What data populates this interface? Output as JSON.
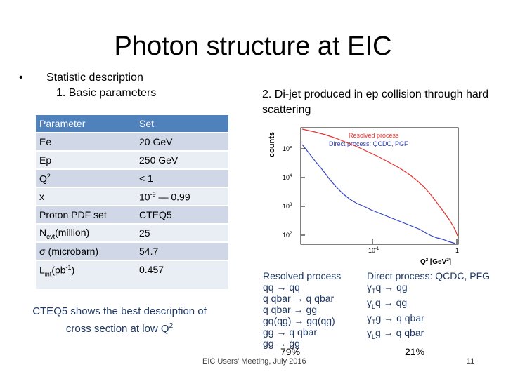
{
  "title": "Photon structure at EIC",
  "bullet": "•",
  "section_heading": "Statistic description",
  "subsection": "1.   Basic parameters",
  "jet_heading": "2. Di-jet produced in ep collision through hard scattering",
  "table": {
    "header": [
      "Parameter",
      "Set"
    ],
    "rows": [
      {
        "name": "Ee",
        "value": "20 GeV"
      },
      {
        "name": "Ep",
        "value": "250 GeV"
      },
      {
        "name_main": "Q",
        "name_sup": "2",
        "value": "< 1"
      },
      {
        "name": "x",
        "value_base": "10",
        "value_sup": "-9",
        "value_rest": " — 0.99"
      },
      {
        "name": "Proton PDF set",
        "value": "CTEQ5"
      },
      {
        "name_main": "N",
        "name_sub": "evt",
        "name_rest": "(million)",
        "value": "25"
      },
      {
        "name": "σ (microbarn)",
        "value": "54.7"
      },
      {
        "name_main": "L",
        "name_sub": "int",
        "name_rest": "(pb",
        "name_sup": "-1",
        "name_end": ")",
        "value": "0.457"
      }
    ]
  },
  "cteq_note": {
    "text": "CTEQ5 shows the best description of cross section at low Q",
    "sup": "2"
  },
  "plot": {
    "ylabel": "counts",
    "xlabel_main": "Q",
    "xlabel_sup": "2",
    "xlabel_unit": " [GeV",
    "xlabel_unit_sup": "2",
    "xlabel_end": "]",
    "legend": [
      {
        "label": "Resolved process",
        "color": "#e8302e"
      },
      {
        "label": "Direct process: QCDC, PGF",
        "color": "#3345c0"
      }
    ],
    "y_ticks": [
      {
        "base": "10",
        "exp": "2"
      },
      {
        "base": "10",
        "exp": "3"
      },
      {
        "base": "10",
        "exp": "4"
      },
      {
        "base": "10",
        "exp": "5"
      }
    ],
    "x_ticks": [
      {
        "label": "10",
        "exp": "-1"
      },
      {
        "label": "1",
        "exp": ""
      }
    ]
  },
  "resolved": {
    "title": "Resolved process",
    "lines": [
      "qq → qq",
      "q qbar → q qbar",
      "q qbar → gg",
      "gq(qg) → gq(qg)",
      "gg → q qbar",
      "gg → gg"
    ],
    "percent": "79%"
  },
  "direct": {
    "title": "Direct process: QCDC, PFG",
    "lines": [
      {
        "a": "γ",
        "sub": "T",
        "b": "q → qg"
      },
      {
        "a": "γ",
        "sub": "L",
        "b": "q → qg"
      },
      {
        "a": "γ",
        "sub": "T",
        "b": "g → q qbar"
      },
      {
        "a": "γ",
        "sub": "L",
        "b": "g → q qbar"
      }
    ],
    "percent": "21%"
  },
  "footer": "EIC Users' Meeting, July 2016",
  "page_number": "11"
}
